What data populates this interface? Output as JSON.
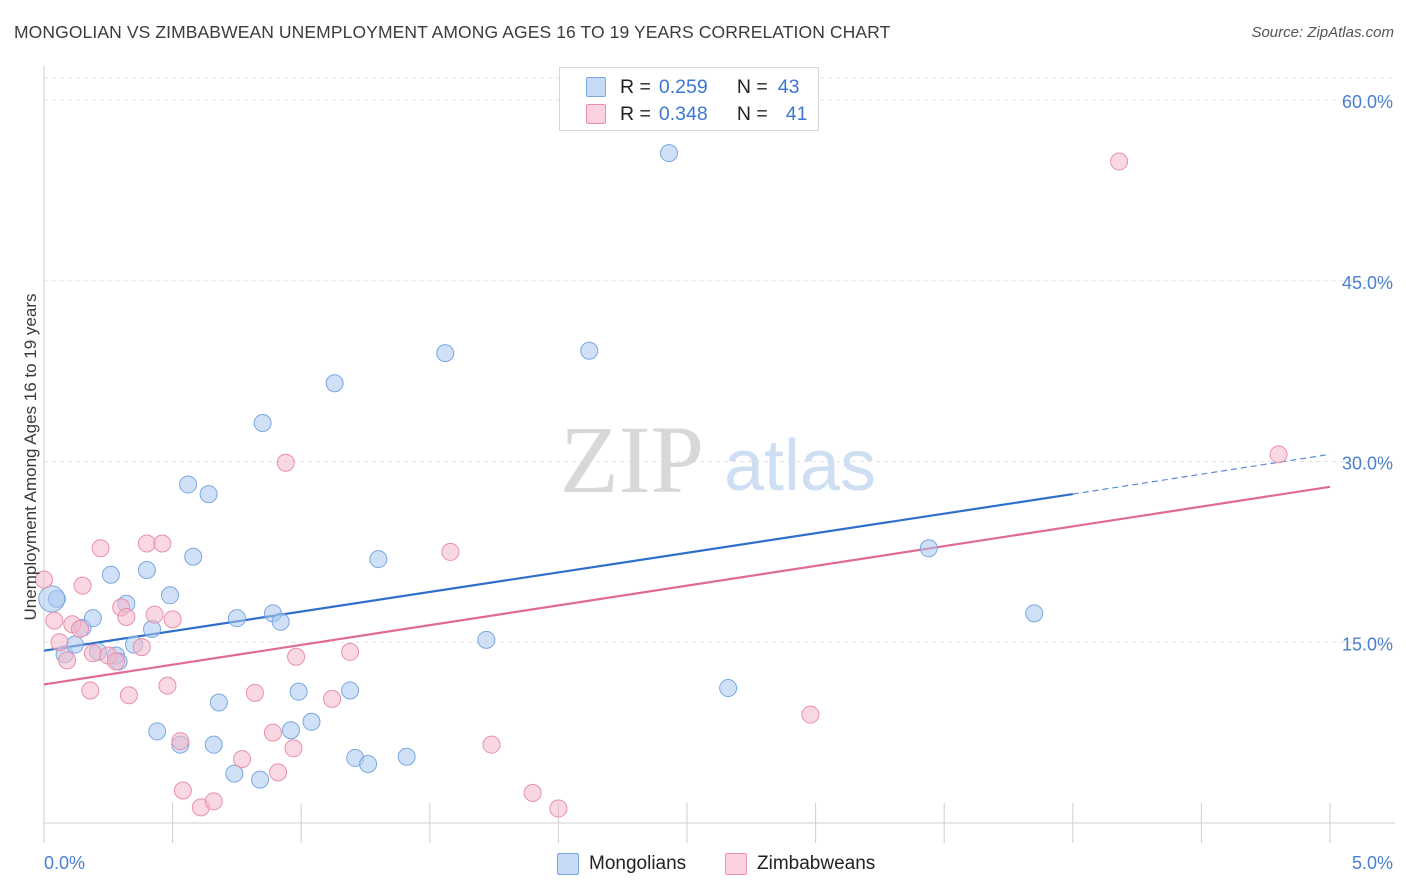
{
  "title": "MONGOLIAN VS ZIMBABWEAN UNEMPLOYMENT AMONG AGES 16 TO 19 YEARS CORRELATION CHART",
  "source": "Source: ZipAtlas.com",
  "watermark": {
    "zip": "ZIP",
    "atlas": "atlas"
  },
  "legend": {
    "rows": [
      {
        "r_label": "R =",
        "r_value": "0.259",
        "n_label": "N =",
        "n_value": "43",
        "color": "#a9c8f0"
      },
      {
        "r_label": "R =",
        "r_value": "0.348",
        "n_label": "N =",
        "n_value": "41",
        "color": "#f6b8cb"
      }
    ]
  },
  "bottom_legend": [
    {
      "label": "Mongolians",
      "color": "#a9c8f0"
    },
    {
      "label": "Zimbabweans",
      "color": "#f6b8cb"
    }
  ],
  "chart_data": {
    "type": "scatter",
    "title": "MONGOLIAN VS ZIMBABWEAN UNEMPLOYMENT AMONG AGES 16 TO 19 YEARS CORRELATION CHART",
    "xlabel": "",
    "ylabel": "Unemployment Among Ages 16 to 19 years",
    "xlim": [
      0,
      5
    ],
    "ylim": [
      0,
      62
    ],
    "x_tick_labels": [
      {
        "value": 0,
        "label": "0.0%"
      },
      {
        "value": 5,
        "label": "5.0%"
      }
    ],
    "y_tick_labels": [
      {
        "value": 15,
        "label": "15.0%"
      },
      {
        "value": 30,
        "label": "30.0%"
      },
      {
        "value": 45,
        "label": "45.0%"
      },
      {
        "value": 60,
        "label": "60.0%"
      }
    ],
    "grid": true,
    "legend_position": "top-center",
    "series": [
      {
        "name": "Mongolians",
        "color": "#a9c8f0",
        "stroke": "#7aa7e0",
        "line_color": "#2f6fcc",
        "trend": {
          "x0": 0,
          "y0": 14.3,
          "x1": 4,
          "y1": 27.3,
          "dash_to_x": 5,
          "dash_to_y": 30.6
        },
        "points": [
          {
            "x": 0.05,
            "y": 18.6
          },
          {
            "x": 0.08,
            "y": 14.0
          },
          {
            "x": 0.12,
            "y": 14.8
          },
          {
            "x": 0.15,
            "y": 16.2
          },
          {
            "x": 0.19,
            "y": 17.0
          },
          {
            "x": 0.21,
            "y": 14.2
          },
          {
            "x": 0.26,
            "y": 20.6
          },
          {
            "x": 0.28,
            "y": 13.9
          },
          {
            "x": 0.29,
            "y": 13.4
          },
          {
            "x": 0.32,
            "y": 18.2
          },
          {
            "x": 0.35,
            "y": 14.8
          },
          {
            "x": 0.4,
            "y": 21.0
          },
          {
            "x": 0.42,
            "y": 16.1
          },
          {
            "x": 0.44,
            "y": 7.6
          },
          {
            "x": 0.49,
            "y": 18.9
          },
          {
            "x": 0.53,
            "y": 6.5
          },
          {
            "x": 0.56,
            "y": 28.1
          },
          {
            "x": 0.58,
            "y": 22.1
          },
          {
            "x": 0.64,
            "y": 27.3
          },
          {
            "x": 0.66,
            "y": 6.5
          },
          {
            "x": 0.68,
            "y": 10.0
          },
          {
            "x": 0.74,
            "y": 4.1
          },
          {
            "x": 0.75,
            "y": 17.0
          },
          {
            "x": 0.84,
            "y": 3.6
          },
          {
            "x": 0.85,
            "y": 33.2
          },
          {
            "x": 0.89,
            "y": 17.4
          },
          {
            "x": 0.92,
            "y": 16.7
          },
          {
            "x": 0.96,
            "y": 7.7
          },
          {
            "x": 0.99,
            "y": 10.9
          },
          {
            "x": 1.04,
            "y": 8.4
          },
          {
            "x": 1.13,
            "y": 36.5
          },
          {
            "x": 1.19,
            "y": 11.0
          },
          {
            "x": 1.21,
            "y": 5.4
          },
          {
            "x": 1.26,
            "y": 4.9
          },
          {
            "x": 1.3,
            "y": 21.9
          },
          {
            "x": 1.41,
            "y": 5.5
          },
          {
            "x": 1.56,
            "y": 39.0
          },
          {
            "x": 1.72,
            "y": 15.2
          },
          {
            "x": 2.12,
            "y": 39.2
          },
          {
            "x": 2.43,
            "y": 55.6
          },
          {
            "x": 2.66,
            "y": 11.2
          },
          {
            "x": 3.44,
            "y": 22.8
          },
          {
            "x": 3.85,
            "y": 17.4
          }
        ],
        "large_point": {
          "x": 0.03,
          "y": 18.6
        }
      },
      {
        "name": "Zimbabweans",
        "color": "#f6b8cb",
        "stroke": "#e98fae",
        "line_color": "#e06a94",
        "trend": {
          "x0": 0,
          "y0": 11.5,
          "x1": 5,
          "y1": 27.9
        },
        "points": [
          {
            "x": 0.0,
            "y": 20.2
          },
          {
            "x": 0.04,
            "y": 16.8
          },
          {
            "x": 0.06,
            "y": 15.0
          },
          {
            "x": 0.09,
            "y": 13.5
          },
          {
            "x": 0.11,
            "y": 16.5
          },
          {
            "x": 0.14,
            "y": 16.1
          },
          {
            "x": 0.15,
            "y": 19.7
          },
          {
            "x": 0.18,
            "y": 11.0
          },
          {
            "x": 0.19,
            "y": 14.1
          },
          {
            "x": 0.22,
            "y": 22.8
          },
          {
            "x": 0.25,
            "y": 13.9
          },
          {
            "x": 0.28,
            "y": 13.4
          },
          {
            "x": 0.3,
            "y": 17.9
          },
          {
            "x": 0.32,
            "y": 17.1
          },
          {
            "x": 0.33,
            "y": 10.6
          },
          {
            "x": 0.38,
            "y": 14.6
          },
          {
            "x": 0.4,
            "y": 23.2
          },
          {
            "x": 0.43,
            "y": 17.3
          },
          {
            "x": 0.46,
            "y": 23.2
          },
          {
            "x": 0.48,
            "y": 11.4
          },
          {
            "x": 0.5,
            "y": 16.9
          },
          {
            "x": 0.53,
            "y": 6.8
          },
          {
            "x": 0.54,
            "y": 2.7
          },
          {
            "x": 0.61,
            "y": 1.3
          },
          {
            "x": 0.66,
            "y": 1.8
          },
          {
            "x": 0.77,
            "y": 5.3
          },
          {
            "x": 0.82,
            "y": 10.8
          },
          {
            "x": 0.89,
            "y": 7.5
          },
          {
            "x": 0.91,
            "y": 4.2
          },
          {
            "x": 0.94,
            "y": 29.9
          },
          {
            "x": 0.97,
            "y": 6.2
          },
          {
            "x": 0.98,
            "y": 13.8
          },
          {
            "x": 1.12,
            "y": 10.3
          },
          {
            "x": 1.19,
            "y": 14.2
          },
          {
            "x": 1.58,
            "y": 22.5
          },
          {
            "x": 1.74,
            "y": 6.5
          },
          {
            "x": 1.9,
            "y": 2.5
          },
          {
            "x": 2.0,
            "y": 1.2
          },
          {
            "x": 2.98,
            "y": 9.0
          },
          {
            "x": 4.18,
            "y": 54.9
          },
          {
            "x": 4.8,
            "y": 30.6
          }
        ]
      }
    ]
  }
}
